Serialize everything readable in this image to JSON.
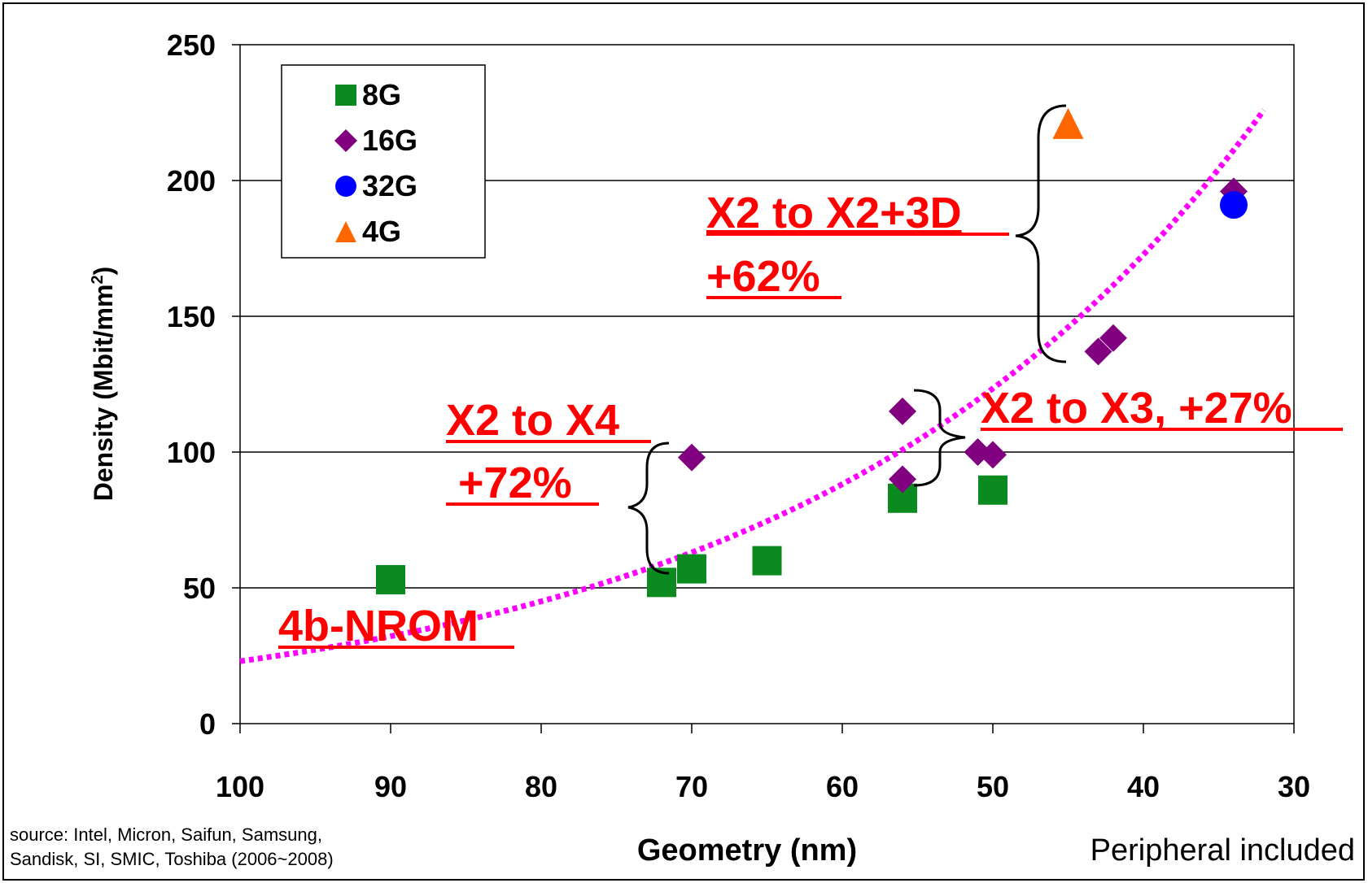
{
  "chart_data": {
    "type": "scatter",
    "xlabel": "Geometry (nm)",
    "ylabel_main": "Density (Mbit/mm",
    "ylabel_sup": "2",
    "ylabel_end": ")",
    "xlim": [
      100,
      30
    ],
    "ylim": [
      0,
      250
    ],
    "x_reversed": true,
    "x_ticks": [
      100,
      90,
      80,
      70,
      60,
      50,
      40,
      30
    ],
    "y_ticks": [
      0,
      50,
      100,
      150,
      200,
      250
    ],
    "grid": "horizontal",
    "legend_position": "top-left",
    "series": [
      {
        "name": "8G",
        "marker": "square",
        "color": "#0a8a1f",
        "points": [
          {
            "x": 90,
            "y": 53
          },
          {
            "x": 72,
            "y": 52
          },
          {
            "x": 70,
            "y": 57
          },
          {
            "x": 65,
            "y": 60
          },
          {
            "x": 56,
            "y": 83
          },
          {
            "x": 50,
            "y": 86
          }
        ]
      },
      {
        "name": "16G",
        "marker": "diamond",
        "color": "#800080",
        "points": [
          {
            "x": 70,
            "y": 98
          },
          {
            "x": 56,
            "y": 115
          },
          {
            "x": 56,
            "y": 90
          },
          {
            "x": 51,
            "y": 100
          },
          {
            "x": 50,
            "y": 99
          },
          {
            "x": 43,
            "y": 137
          },
          {
            "x": 42,
            "y": 142
          },
          {
            "x": 34,
            "y": 196
          }
        ]
      },
      {
        "name": "32G",
        "marker": "circle",
        "color": "#0000ff",
        "points": [
          {
            "x": 34,
            "y": 191
          }
        ]
      },
      {
        "name": "4G",
        "marker": "triangle",
        "color": "#ff6600",
        "points": [
          {
            "x": 45,
            "y": 221
          }
        ]
      }
    ],
    "trendline": {
      "color": "#ff00ff",
      "style": "dotted",
      "type": "exponential",
      "from_x": 100,
      "to_x": 32,
      "a": 23,
      "b": 0.0336
    },
    "annotations": [
      {
        "lines": [
          "X2 to X2+3D",
          "+62%"
        ],
        "color": "#ff0000"
      },
      {
        "lines": [
          "X2 to X3, +27%"
        ],
        "color": "#ff0000"
      },
      {
        "lines": [
          "X2 to X4",
          " +72%"
        ],
        "color": "#ff0000"
      },
      {
        "lines": [
          "4b-NROM"
        ],
        "color": "#ff0000"
      }
    ],
    "source_note": [
      "source: Intel, Micron, Saifun, Samsung,",
      "Sandisk, SI, SMIC, Toshiba (2006~2008)"
    ],
    "footnote": "Peripheral included"
  }
}
